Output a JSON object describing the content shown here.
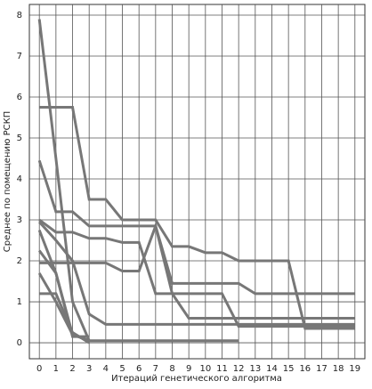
{
  "chart_data": {
    "type": "line",
    "x_label": "Итераций генетического алгоритма",
    "y_label": "Среднее по помещению РСКП",
    "x": [
      0,
      1,
      2,
      3,
      4,
      5,
      6,
      7,
      8,
      9,
      10,
      11,
      12,
      13,
      14,
      15,
      16,
      17,
      18,
      19
    ],
    "xlim": [
      -0.6,
      19.6
    ],
    "ylim": [
      -0.39,
      8.26
    ],
    "xticks": [
      0,
      1,
      2,
      3,
      4,
      5,
      6,
      7,
      8,
      9,
      10,
      11,
      12,
      13,
      14,
      15,
      16,
      17,
      18,
      19
    ],
    "yticks": [
      0,
      1,
      2,
      3,
      4,
      5,
      6,
      7,
      8
    ],
    "grid": true,
    "series": [
      {
        "color": "#777777",
        "values": [
          7.9,
          4.5,
          1.0,
          0.05,
          0.05,
          0.05,
          0.05,
          0.05,
          0.05,
          0.05,
          0.05,
          0.05,
          0.05,
          null,
          null,
          null,
          null,
          null,
          null,
          null
        ]
      },
      {
        "color": "#777777",
        "values": [
          5.75,
          5.75,
          5.75,
          3.5,
          3.5,
          3.0,
          3.0,
          3.0,
          2.35,
          2.35,
          2.2,
          2.2,
          2.0,
          2.0,
          2.0,
          2.0,
          0.35,
          0.35,
          0.35,
          0.35
        ]
      },
      {
        "color": "#777777",
        "values": [
          4.45,
          3.2,
          3.2,
          2.85,
          2.85,
          2.85,
          2.85,
          2.85,
          1.45,
          1.45,
          1.45,
          1.45,
          1.45,
          1.2,
          1.2,
          1.2,
          1.2,
          1.2,
          1.2,
          1.2
        ]
      },
      {
        "color": "#777777",
        "values": [
          3.0,
          2.7,
          2.7,
          2.55,
          2.55,
          2.45,
          2.45,
          1.2,
          1.2,
          1.2,
          1.2,
          1.2,
          0.4,
          0.4,
          0.4,
          0.4,
          0.4,
          0.4,
          0.4,
          0.4
        ]
      },
      {
        "color": "#777777",
        "values": [
          1.95,
          1.95,
          1.95,
          1.95,
          1.95,
          1.75,
          1.75,
          2.85,
          1.2,
          0.6,
          0.6,
          0.6,
          0.6,
          0.6,
          0.6,
          0.6,
          0.6,
          0.6,
          0.6,
          0.6
        ]
      },
      {
        "color": "#777777",
        "values": [
          2.95,
          2.5,
          2.0,
          0.7,
          0.45,
          0.45,
          0.45,
          0.45,
          0.45,
          0.45,
          0.45,
          0.45,
          0.45,
          0.45,
          0.45,
          0.45,
          0.45,
          0.45,
          0.45,
          0.45
        ]
      },
      {
        "color": "#777777",
        "values": [
          2.25,
          1.7,
          0.2,
          0.05,
          null,
          null,
          null,
          null,
          null,
          null,
          null,
          null,
          null,
          null,
          null,
          null,
          null,
          null,
          null,
          null
        ]
      },
      {
        "color": "#777777",
        "values": [
          1.2,
          1.2,
          0.25,
          0.0,
          null,
          null,
          null,
          null,
          null,
          null,
          null,
          null,
          null,
          null,
          null,
          null,
          null,
          null,
          null,
          null
        ]
      },
      {
        "color": "#777777",
        "values": [
          2.75,
          1.7,
          0.15,
          0.15,
          null,
          null,
          null,
          null,
          null,
          null,
          null,
          null,
          null,
          null,
          null,
          null,
          null,
          null,
          null,
          null
        ]
      },
      {
        "color": "#777777",
        "values": [
          1.7,
          1.0,
          0.2,
          0.05,
          null,
          null,
          null,
          null,
          null,
          null,
          null,
          null,
          null,
          null,
          null,
          null,
          null,
          null,
          null,
          null
        ]
      }
    ]
  }
}
